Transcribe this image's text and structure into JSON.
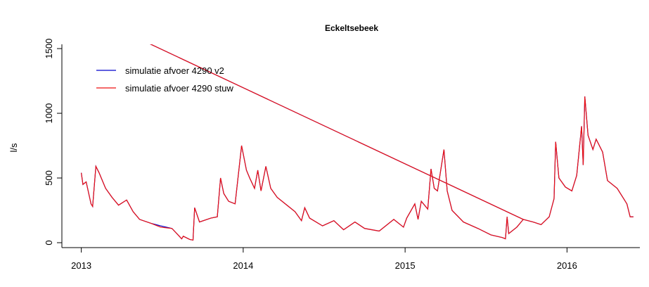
{
  "chart_data": {
    "type": "line",
    "title": "Eckeltsebeek",
    "ylabel": "l/s",
    "x": [
      2013.2,
      2015.73,
      null,
      2013.0,
      2013.01,
      2013.03,
      2013.06,
      2013.07,
      2013.09,
      2013.11,
      2013.15,
      2013.19,
      2013.23,
      2013.28,
      2013.32,
      2013.36,
      2013.43,
      2013.49,
      2013.56,
      2013.62,
      2013.63,
      2013.67,
      2013.69,
      2013.7,
      2013.73,
      2013.8,
      2013.84,
      2013.86,
      2013.88,
      2013.91,
      2013.95,
      2013.99,
      2014.02,
      2014.04,
      2014.07,
      2014.09,
      2014.11,
      2014.14,
      2014.17,
      2014.21,
      2014.28,
      2014.32,
      2014.36,
      2014.38,
      2014.41,
      2014.49,
      2014.56,
      2014.62,
      2014.69,
      2014.75,
      2014.84,
      2014.93,
      2014.99,
      2015.01,
      2015.06,
      2015.08,
      2015.1,
      2015.14,
      2015.16,
      2015.18,
      2015.2,
      2015.24,
      2015.26,
      2015.29,
      2015.36,
      2015.45,
      2015.53,
      2015.6,
      2015.62,
      2015.63,
      2015.64,
      2015.69,
      2015.73,
      2015.79,
      2015.84,
      2015.89,
      2015.92,
      2015.93,
      2015.95,
      2015.99,
      2016.03,
      2016.06,
      2016.09,
      2016.1,
      2016.11,
      2016.13,
      2016.16,
      2016.18,
      2016.22,
      2016.25,
      2016.31,
      2016.37,
      2016.39,
      2016.41
    ],
    "series": [
      {
        "name": "simulatie afvoer 4290 v2",
        "color": "#0000cc",
        "values": [
          1668,
          180,
          null,
          540,
          450,
          470,
          300,
          280,
          590,
          540,
          420,
          350,
          290,
          330,
          240,
          180,
          150,
          130,
          110,
          30,
          50,
          25,
          20,
          270,
          160,
          190,
          200,
          500,
          380,
          320,
          300,
          750,
          560,
          500,
          420,
          560,
          400,
          590,
          420,
          350,
          280,
          240,
          170,
          270,
          190,
          130,
          170,
          100,
          160,
          110,
          90,
          180,
          120,
          190,
          300,
          180,
          320,
          260,
          570,
          420,
          400,
          720,
          400,
          250,
          160,
          110,
          60,
          40,
          30,
          200,
          70,
          120,
          180,
          160,
          140,
          200,
          340,
          780,
          500,
          430,
          400,
          520,
          900,
          600,
          1130,
          830,
          720,
          800,
          700,
          480,
          420,
          300,
          200,
          200
        ]
      },
      {
        "name": "simulatie afvoer 4290 stuw",
        "color": "#ee1111",
        "values": [
          1668,
          180,
          null,
          540,
          450,
          470,
          300,
          280,
          590,
          540,
          420,
          350,
          290,
          330,
          240,
          180,
          150,
          120,
          110,
          30,
          50,
          25,
          20,
          270,
          160,
          190,
          200,
          500,
          380,
          320,
          300,
          750,
          560,
          500,
          420,
          560,
          400,
          590,
          420,
          350,
          280,
          240,
          170,
          270,
          190,
          130,
          170,
          100,
          160,
          110,
          90,
          180,
          120,
          190,
          300,
          180,
          320,
          260,
          570,
          420,
          400,
          720,
          400,
          250,
          160,
          110,
          60,
          40,
          30,
          200,
          70,
          120,
          180,
          160,
          140,
          200,
          340,
          780,
          500,
          430,
          400,
          520,
          900,
          600,
          1130,
          830,
          720,
          800,
          700,
          480,
          420,
          300,
          200,
          200
        ]
      }
    ],
    "xlim": [
      2012.88,
      2016.45
    ],
    "xticks": [
      2013,
      2014,
      2015,
      2016
    ],
    "ylim": [
      -38,
      1533
    ],
    "yticks": [
      0,
      500,
      1000,
      1500
    ],
    "legend": "topleft"
  }
}
